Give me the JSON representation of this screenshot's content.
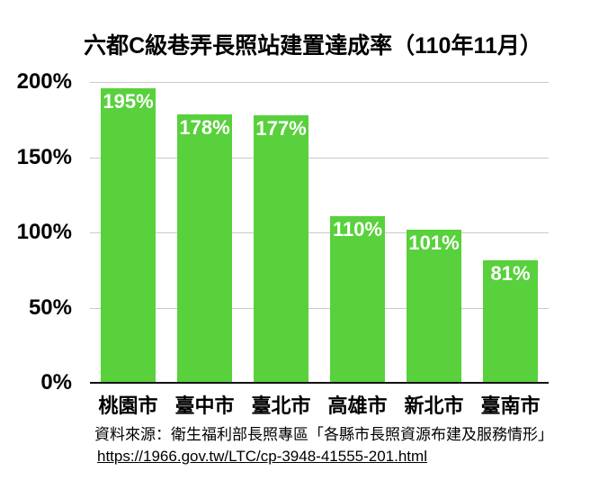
{
  "chart_data": {
    "type": "bar",
    "title": "六都C級巷弄長照站建置達成率（110年11月）",
    "categories": [
      "桃園市",
      "臺中市",
      "臺北市",
      "高雄市",
      "新北市",
      "臺南市"
    ],
    "values": [
      195,
      178,
      177,
      110,
      101,
      81
    ],
    "value_labels": [
      "195%",
      "178%",
      "177%",
      "110%",
      "101%",
      "81%"
    ],
    "ylim": [
      0,
      200
    ],
    "yticks": [
      {
        "label": "200%",
        "value": 200
      },
      {
        "label": "150%",
        "value": 150
      },
      {
        "label": "100%",
        "value": 100
      },
      {
        "label": "50%",
        "value": 50
      },
      {
        "label": "0%",
        "value": 0
      }
    ],
    "grid": true,
    "legend": false,
    "bar_color": "#58d13c",
    "value_label_color": "#ffffff",
    "source_line1": "資料來源：衛生福利部長照專區「各縣市長照資源布建及服務情形」",
    "source_line2": "https://1966.gov.tw/LTC/cp-3948-41555-201.html"
  }
}
